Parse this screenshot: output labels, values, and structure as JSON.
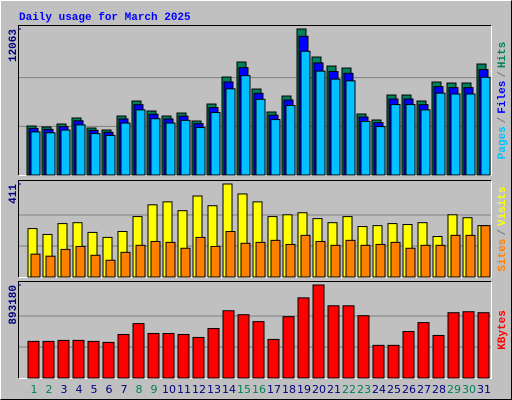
{
  "chart_data": {
    "type": "bar",
    "title": "Daily usage for March 2025",
    "title_color": "#0000ff",
    "categories": [
      "1",
      "2",
      "3",
      "4",
      "5",
      "6",
      "7",
      "8",
      "9",
      "10",
      "11",
      "12",
      "13",
      "14",
      "15",
      "16",
      "17",
      "18",
      "19",
      "20",
      "21",
      "22",
      "23",
      "24",
      "25",
      "26",
      "27",
      "28",
      "29",
      "30",
      "31"
    ],
    "category_colors": [
      "#00805c",
      "#00805c",
      "#000080",
      "#000080",
      "#000080",
      "#000080",
      "#000080",
      "#00805c",
      "#00805c",
      "#000080",
      "#000080",
      "#000080",
      "#000080",
      "#000080",
      "#00805c",
      "#00805c",
      "#000080",
      "#000080",
      "#000080",
      "#000080",
      "#000080",
      "#00805c",
      "#00805c",
      "#000080",
      "#000080",
      "#000080",
      "#000080",
      "#000080",
      "#00805c",
      "#00805c",
      "#000080"
    ],
    "legend_separator": "/",
    "panels": [
      {
        "ylim": [
          0,
          12063
        ],
        "yticks": [
          12063
        ],
        "series": [
          {
            "name": "Hits",
            "color": "#00805c",
            "values": [
              4048,
              3965,
              4213,
              4708,
              3882,
              3717,
              4873,
              6112,
              5286,
              4873,
              5121,
              4460,
              5865,
              8095,
              9334,
              7104,
              5204,
              6525,
              12063,
              9747,
              9003,
              8838,
              5039,
              4543,
              6608,
              6608,
              6112,
              7682,
              7599,
              7600,
              9169
            ]
          },
          {
            "name": "Files",
            "color": "#0000ff",
            "values": [
              3850,
              3770,
              4000,
              4480,
              3690,
              3530,
              4630,
              5810,
              5020,
              4630,
              4860,
              4240,
              5570,
              7690,
              8870,
              6750,
              4940,
              6200,
              11460,
              9260,
              8550,
              8400,
              4790,
              4320,
              6280,
              6280,
              5810,
              7300,
              7220,
              7220,
              8710
            ]
          },
          {
            "name": "Pages",
            "color": "#00c0ff",
            "values": [
              3560,
              3490,
              3710,
              4140,
              3420,
              3270,
              4290,
              5380,
              4650,
              4290,
              4510,
              3920,
              5160,
              7120,
              8210,
              6250,
              4580,
              5740,
              10220,
              8580,
              7920,
              7780,
              4430,
              4000,
              5820,
              5820,
              5380,
              6760,
              6690,
              6690,
              8070
            ]
          }
        ]
      },
      {
        "ylim": [
          0,
          411
        ],
        "yticks": [
          411
        ],
        "series": [
          {
            "name": "Visits",
            "color": "#ffff00",
            "values": [
              214,
              188,
              236,
              240,
              197,
              175,
              201,
              267,
              319,
              332,
              293,
              358,
              315,
              411,
              367,
              332,
              267,
              275,
              284,
              258,
              240,
              267,
              223,
              227,
              236,
              232,
              240,
              179,
              275,
              262,
              227
            ]
          },
          {
            "name": "Sites",
            "color": "#ff8000",
            "values": [
              101,
              92,
              122,
              135,
              96,
              74,
              109,
              140,
              157,
              153,
              127,
              175,
              135,
              201,
              149,
              153,
              162,
              144,
              184,
              157,
              140,
              162,
              140,
              144,
              153,
              127,
              140,
              140,
              184,
              184,
              227
            ]
          }
        ]
      },
      {
        "ylim": [
          0,
          893180
        ],
        "yticks": [
          893180
        ],
        "series": [
          {
            "name": "KBytes",
            "color": "#ff0000",
            "values": [
              351574,
              351574,
              361076,
              361076,
              351574,
              342072,
              418088,
              522610,
              427590,
              427590,
              418088,
              389582,
              475100,
              646136,
              608128,
              541614,
              370578,
              589124,
              769662,
              893180,
              693646,
              693646,
              598626,
              313566,
              313566,
              446594,
              532112,
              408586,
              627132,
              636634,
              627132
            ]
          }
        ]
      }
    ]
  }
}
